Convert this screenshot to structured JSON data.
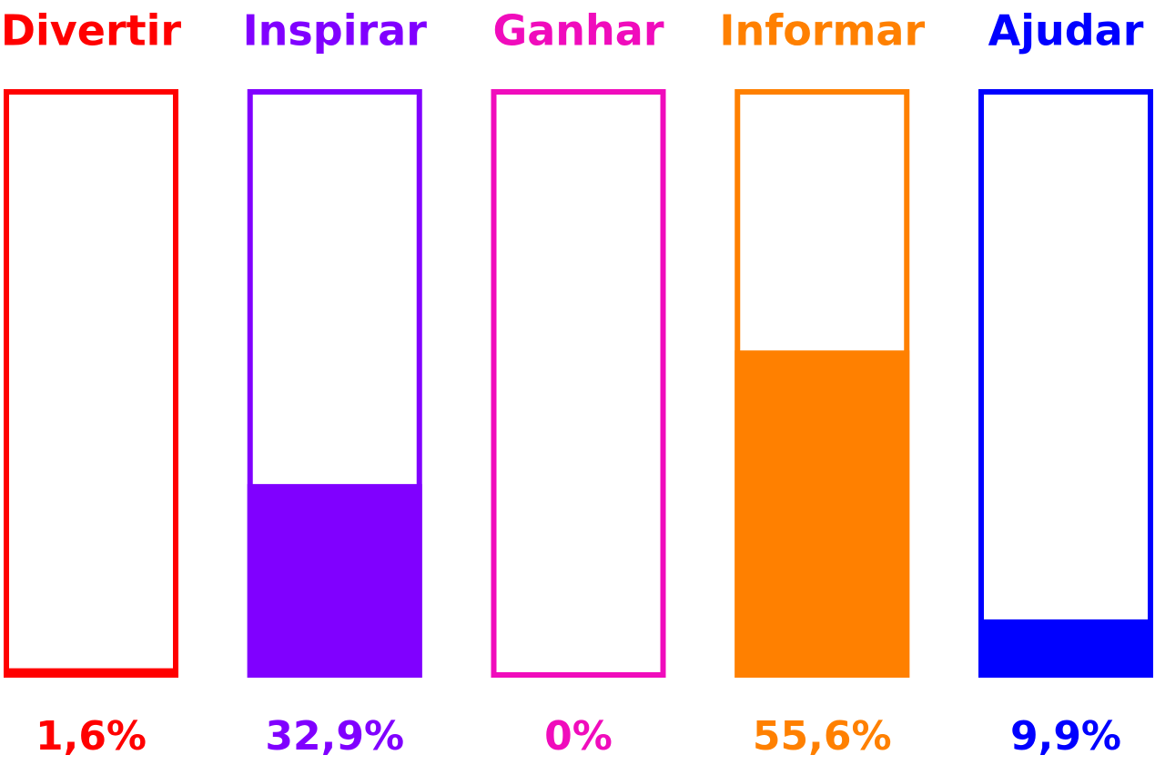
{
  "chart_data": {
    "type": "bar",
    "categories": [
      "Divertir",
      "Inspirar",
      "Ganhar",
      "Informar",
      "Ajudar"
    ],
    "values": [
      1.6,
      32.9,
      0,
      55.6,
      9.9
    ],
    "value_labels": [
      "1,6%",
      "32,9%",
      "0%",
      "55,6%",
      "9,9%"
    ],
    "colors": [
      "#ff0000",
      "#8000ff",
      "#f00cbc",
      "#ff8000",
      "#0000ff"
    ],
    "ylim": [
      0,
      100
    ]
  }
}
